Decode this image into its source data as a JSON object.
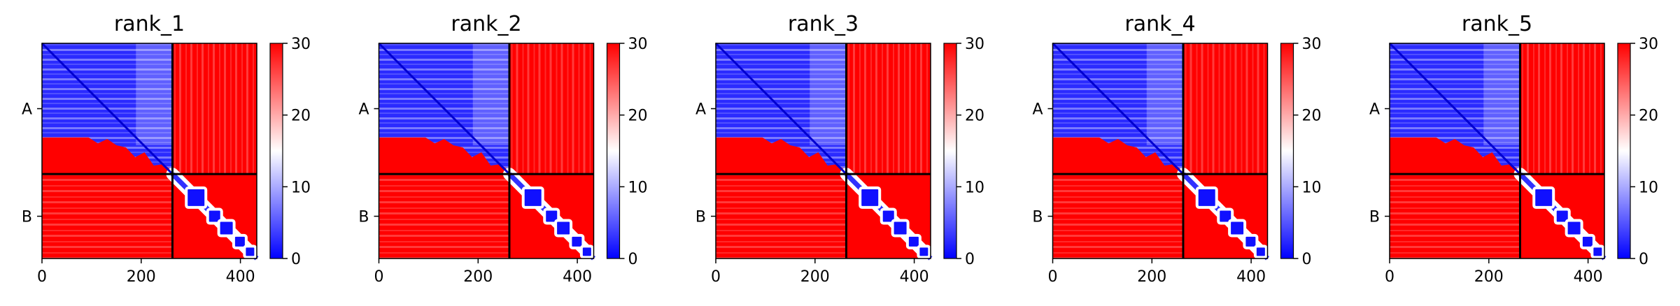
{
  "chart_data": [
    {
      "type": "heatmap",
      "title": "rank_1",
      "x_ticks": [
        0,
        200,
        400
      ],
      "y_tick_labels": [
        "A",
        "B"
      ],
      "colorbar_ticks": [
        0,
        10,
        20,
        30
      ],
      "colorbar_range": [
        0,
        30
      ],
      "chain_boundary": 263,
      "length": 433,
      "colormap": [
        "#0000ff",
        "#ffffff",
        "#ff0000"
      ]
    },
    {
      "type": "heatmap",
      "title": "rank_2",
      "x_ticks": [
        0,
        200,
        400
      ],
      "y_tick_labels": [
        "A",
        "B"
      ],
      "colorbar_ticks": [
        0,
        10,
        20,
        30
      ],
      "colorbar_range": [
        0,
        30
      ],
      "chain_boundary": 263,
      "length": 433,
      "colormap": [
        "#0000ff",
        "#ffffff",
        "#ff0000"
      ]
    },
    {
      "type": "heatmap",
      "title": "rank_3",
      "x_ticks": [
        0,
        200,
        400
      ],
      "y_tick_labels": [
        "A",
        "B"
      ],
      "colorbar_ticks": [
        0,
        10,
        20,
        30
      ],
      "colorbar_range": [
        0,
        30
      ],
      "chain_boundary": 263,
      "length": 433,
      "colormap": [
        "#0000ff",
        "#ffffff",
        "#ff0000"
      ]
    },
    {
      "type": "heatmap",
      "title": "rank_4",
      "x_ticks": [
        0,
        200,
        400
      ],
      "y_tick_labels": [
        "A",
        "B"
      ],
      "colorbar_ticks": [
        0,
        10,
        20,
        30
      ],
      "colorbar_range": [
        0,
        30
      ],
      "chain_boundary": 263,
      "length": 433,
      "colormap": [
        "#0000ff",
        "#ffffff",
        "#ff0000"
      ]
    },
    {
      "type": "heatmap",
      "title": "rank_5",
      "x_ticks": [
        0,
        200,
        400
      ],
      "y_tick_labels": [
        "A",
        "B"
      ],
      "colorbar_ticks": [
        0,
        10,
        20,
        30
      ],
      "colorbar_range": [
        0,
        30
      ],
      "chain_boundary": 263,
      "length": 433,
      "colormap": [
        "#0000ff",
        "#ffffff",
        "#ff0000"
      ]
    }
  ]
}
